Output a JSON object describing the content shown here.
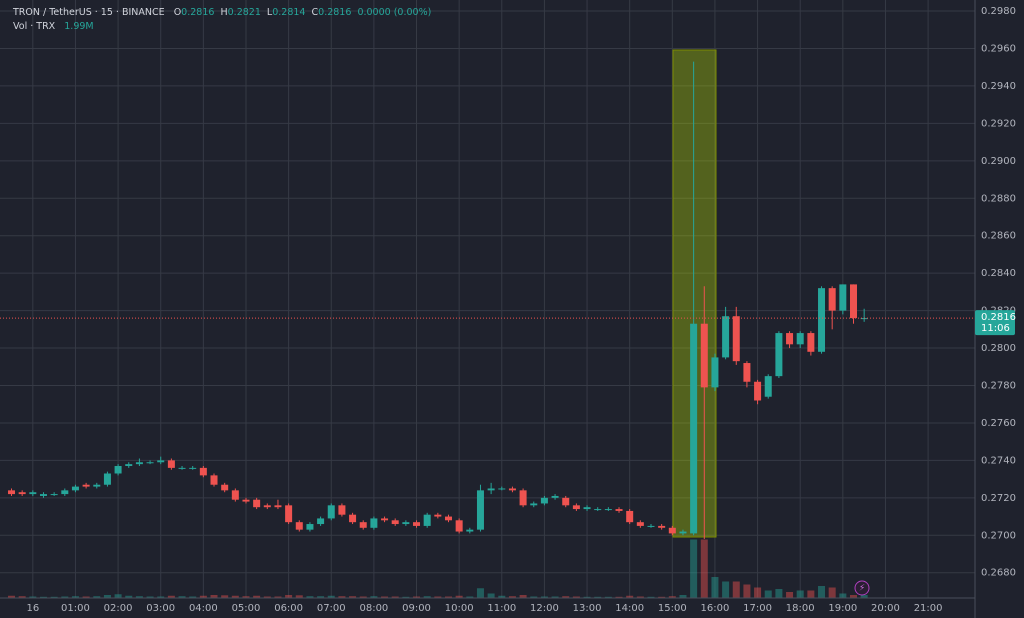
{
  "chart_data": {
    "type": "candlestick",
    "legend": {
      "symbol": "TRON / TetherUS · 15 · BINANCE",
      "o_label": "O",
      "open": "0.2816",
      "h_label": "H",
      "high": "0.2821",
      "l_label": "L",
      "low": "0.2814",
      "c_label": "C",
      "close": "0.2816",
      "change": "0.0000 (0.00%)",
      "volume_label": "Vol · TRX",
      "volume": "1.99M"
    },
    "x": [
      -0.5,
      -0.25,
      0,
      0.25,
      0.5,
      0.75,
      1,
      1.25,
      1.5,
      1.75,
      2,
      2.25,
      2.5,
      2.75,
      3,
      3.25,
      3.5,
      3.75,
      4,
      4.25,
      4.5,
      4.75,
      5,
      5.25,
      5.5,
      5.75,
      6,
      6.25,
      6.5,
      6.75,
      7,
      7.25,
      7.5,
      7.75,
      8,
      8.25,
      8.5,
      8.75,
      9,
      9.25,
      9.5,
      9.75,
      10,
      10.25,
      10.5,
      10.75,
      11,
      11.25,
      11.5,
      11.75,
      12,
      12.25,
      12.5,
      12.75,
      13,
      13.25,
      13.5,
      13.75,
      14,
      14.25,
      14.5,
      14.75,
      15,
      15.25,
      15.5,
      15.75,
      16,
      16.25,
      16.5,
      16.75,
      17,
      17.25,
      17.5,
      17.75,
      18,
      18.25,
      18.5,
      18.75,
      19,
      19.25,
      19.5
    ],
    "open": [
      0.2724,
      0.2723,
      0.2722,
      0.2721,
      0.2722,
      0.2722,
      0.2724,
      0.2727,
      0.2726,
      0.2727,
      0.2733,
      0.2737,
      0.2738,
      0.2739,
      0.2739,
      0.274,
      0.2736,
      0.2736,
      0.2736,
      0.2732,
      0.2727,
      0.2724,
      0.2719,
      0.2719,
      0.2716,
      0.2716,
      0.2716,
      0.2707,
      0.2703,
      0.2706,
      0.2709,
      0.2716,
      0.2711,
      0.2707,
      0.2704,
      0.2709,
      0.2708,
      0.2706,
      0.2707,
      0.2705,
      0.2711,
      0.271,
      0.2708,
      0.2702,
      0.2703,
      0.2724,
      0.2725,
      0.2725,
      0.2724,
      0.2716,
      0.2717,
      0.272,
      0.272,
      0.2716,
      0.2714,
      0.2714,
      0.2714,
      0.2714,
      0.2713,
      0.2707,
      0.2705,
      0.2705,
      0.2704,
      0.2701,
      0.2701,
      0.2813,
      0.2779,
      0.2795,
      0.2817,
      0.2792,
      0.2782,
      0.2774,
      0.2785,
      0.2808,
      0.2802,
      0.2808,
      0.2798,
      0.2832,
      0.282,
      0.2834,
      0.2816
    ],
    "high": [
      0.2725,
      0.2724,
      0.2724,
      0.2723,
      0.2723,
      0.2725,
      0.2727,
      0.2728,
      0.2728,
      0.2734,
      0.2738,
      0.2739,
      0.2741,
      0.274,
      0.2742,
      0.2741,
      0.2737,
      0.2737,
      0.2737,
      0.2733,
      0.2728,
      0.2725,
      0.272,
      0.272,
      0.2717,
      0.2719,
      0.2717,
      0.2708,
      0.2707,
      0.271,
      0.2717,
      0.2717,
      0.2712,
      0.2708,
      0.271,
      0.271,
      0.2709,
      0.2708,
      0.2708,
      0.2712,
      0.2712,
      0.2711,
      0.2709,
      0.2704,
      0.2727,
      0.2728,
      0.2726,
      0.2726,
      0.2725,
      0.2718,
      0.2721,
      0.2722,
      0.2721,
      0.2717,
      0.2716,
      0.2715,
      0.2715,
      0.2715,
      0.2714,
      0.2708,
      0.2706,
      0.2706,
      0.2705,
      0.2703,
      0.2953,
      0.2833,
      0.2797,
      0.2822,
      0.2822,
      0.2793,
      0.2783,
      0.2786,
      0.2809,
      0.2809,
      0.2809,
      0.2809,
      0.2833,
      0.2833,
      0.2834,
      0.2834,
      0.2821
    ],
    "low": [
      0.2721,
      0.2721,
      0.2721,
      0.272,
      0.2721,
      0.2721,
      0.2723,
      0.2725,
      0.2725,
      0.2726,
      0.2732,
      0.2736,
      0.2737,
      0.2738,
      0.2738,
      0.2735,
      0.2735,
      0.2735,
      0.2731,
      0.2726,
      0.2723,
      0.2718,
      0.2717,
      0.2714,
      0.2714,
      0.2714,
      0.2706,
      0.2702,
      0.2702,
      0.2705,
      0.2708,
      0.271,
      0.2706,
      0.2703,
      0.2703,
      0.2707,
      0.2705,
      0.2705,
      0.2704,
      0.2704,
      0.2709,
      0.2707,
      0.2701,
      0.2701,
      0.2702,
      0.2722,
      0.2724,
      0.2723,
      0.2715,
      0.2715,
      0.2716,
      0.2719,
      0.2715,
      0.2713,
      0.2713,
      0.2713,
      0.2713,
      0.2712,
      0.2706,
      0.2704,
      0.2704,
      0.2703,
      0.27,
      0.27,
      0.27,
      0.2698,
      0.2777,
      0.2794,
      0.2791,
      0.2779,
      0.277,
      0.2773,
      0.2784,
      0.28,
      0.28,
      0.2796,
      0.2797,
      0.281,
      0.2818,
      0.2813,
      0.2814
    ],
    "close": [
      0.2722,
      0.2722,
      0.2723,
      0.2722,
      0.2722,
      0.2724,
      0.2726,
      0.2726,
      0.2727,
      0.2733,
      0.2737,
      0.2738,
      0.2739,
      0.2739,
      0.274,
      0.2736,
      0.2736,
      0.2736,
      0.2732,
      0.2727,
      0.2724,
      0.2719,
      0.2718,
      0.2715,
      0.2715,
      0.2715,
      0.2707,
      0.2703,
      0.2706,
      0.2709,
      0.2716,
      0.2711,
      0.2707,
      0.2704,
      0.2709,
      0.2708,
      0.2706,
      0.2707,
      0.2705,
      0.2711,
      0.271,
      0.2708,
      0.2702,
      0.2703,
      0.2724,
      0.2725,
      0.2725,
      0.2724,
      0.2716,
      0.2717,
      0.272,
      0.2721,
      0.2716,
      0.2714,
      0.2715,
      0.2714,
      0.2714,
      0.2713,
      0.2707,
      0.2705,
      0.2705,
      0.2704,
      0.2701,
      0.2702,
      0.2813,
      0.2779,
      0.2795,
      0.2817,
      0.2793,
      0.2782,
      0.2772,
      0.2785,
      0.2808,
      0.2802,
      0.2808,
      0.2798,
      0.2832,
      0.282,
      0.2834,
      0.2816,
      0.2816
    ],
    "volume": [
      1.5,
      1.2,
      1.0,
      0.8,
      0.8,
      1.0,
      1.2,
      1.0,
      1.2,
      2.0,
      2.5,
      1.5,
      1.2,
      1.0,
      1.0,
      1.5,
      1.2,
      1.0,
      1.5,
      2.0,
      1.8,
      1.5,
      1.2,
      1.5,
      1.0,
      1.0,
      2.0,
      1.8,
      1.2,
      1.2,
      1.5,
      1.2,
      1.2,
      1.0,
      1.2,
      1.0,
      1.0,
      0.8,
      1.0,
      1.2,
      1.0,
      1.0,
      1.5,
      1.0,
      6.5,
      3.0,
      1.5,
      1.2,
      2.0,
      1.0,
      1.0,
      1.0,
      1.2,
      1.0,
      0.8,
      0.8,
      0.8,
      0.8,
      1.5,
      1.0,
      0.8,
      0.8,
      1.2,
      2.0,
      39,
      39,
      14,
      11,
      11,
      9,
      7,
      5,
      6,
      4,
      5,
      5,
      8,
      7,
      3,
      2,
      1.99
    ],
    "up_color": "#26a69a",
    "down_color": "#ef5350",
    "xlim": [
      -0.77,
      22.1
    ],
    "xticks": [
      {
        "value": 0,
        "label": "16"
      },
      {
        "value": 1,
        "label": "01:00"
      },
      {
        "value": 2,
        "label": "02:00"
      },
      {
        "value": 3,
        "label": "03:00"
      },
      {
        "value": 4,
        "label": "04:00"
      },
      {
        "value": 5,
        "label": "05:00"
      },
      {
        "value": 6,
        "label": "06:00"
      },
      {
        "value": 7,
        "label": "07:00"
      },
      {
        "value": 8,
        "label": "08:00"
      },
      {
        "value": 9,
        "label": "09:00"
      },
      {
        "value": 10,
        "label": "10:00"
      },
      {
        "value": 11,
        "label": "11:00"
      },
      {
        "value": 12,
        "label": "12:00"
      },
      {
        "value": 13,
        "label": "13:00"
      },
      {
        "value": 14,
        "label": "14:00"
      },
      {
        "value": 15,
        "label": "15:00"
      },
      {
        "value": 16,
        "label": "16:00"
      },
      {
        "value": 17,
        "label": "17:00"
      },
      {
        "value": 18,
        "label": "18:00"
      },
      {
        "value": 19,
        "label": "19:00"
      },
      {
        "value": 20,
        "label": "20:00"
      },
      {
        "value": 21,
        "label": "21:00"
      }
    ],
    "ylim": [
      0.26665,
      0.29859
    ],
    "yticks": [
      {
        "value": 0.268,
        "label": "0.2680"
      },
      {
        "value": 0.27,
        "label": "0.2700"
      },
      {
        "value": 0.272,
        "label": "0.2720"
      },
      {
        "value": 0.274,
        "label": "0.2740"
      },
      {
        "value": 0.276,
        "label": "0.2760"
      },
      {
        "value": 0.278,
        "label": "0.2780"
      },
      {
        "value": 0.28,
        "label": "0.2800"
      },
      {
        "value": 0.282,
        "label": "0.2820"
      },
      {
        "value": 0.284,
        "label": "0.2840"
      },
      {
        "value": 0.286,
        "label": "0.2860"
      },
      {
        "value": 0.288,
        "label": "0.2880"
      },
      {
        "value": 0.29,
        "label": "0.2900"
      },
      {
        "value": 0.292,
        "label": "0.2920"
      },
      {
        "value": 0.294,
        "label": "0.2940"
      },
      {
        "value": 0.296,
        "label": "0.2960"
      },
      {
        "value": 0.298,
        "label": "0.2980"
      }
    ],
    "grid": true,
    "price_line": {
      "value": 0.2816,
      "label": "0.2816",
      "countdown": "11:06"
    }
  }
}
